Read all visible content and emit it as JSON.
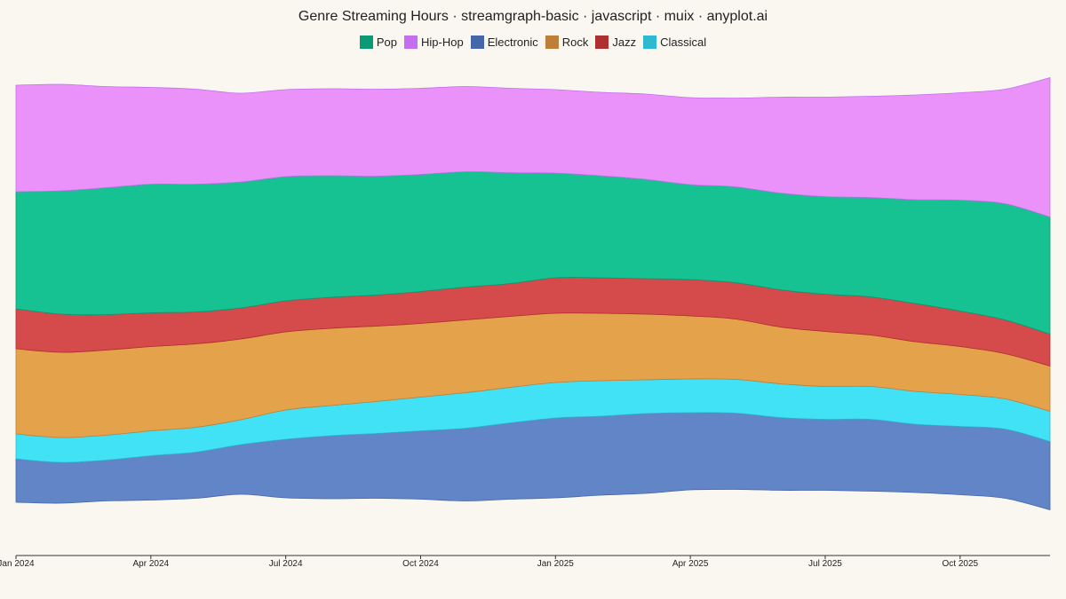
{
  "title": "Genre Streaming Hours · streamgraph-basic · javascript · muix · anyplot.ai",
  "colors": {
    "background": "#F9F7F0",
    "axis": "#333333"
  },
  "chart_data": {
    "type": "area",
    "stacking": "streamgraph (centered baseline)",
    "title": "Genre Streaming Hours · streamgraph-basic · javascript · muix · anyplot.ai",
    "xlabel": "",
    "ylabel": "",
    "x_ticks": [
      "Jan 2024",
      "Apr 2024",
      "Jul 2024",
      "Oct 2024",
      "Jan 2025",
      "Apr 2025",
      "Jul 2025",
      "Oct 2025"
    ],
    "x": [
      "Jan 2024",
      "Feb 2024",
      "Mar 2024",
      "Apr 2024",
      "May 2024",
      "Jun 2024",
      "Jul 2024",
      "Aug 2024",
      "Sep 2024",
      "Oct 2024",
      "Nov 2024",
      "Dec 2024",
      "Jan 2025",
      "Feb 2025",
      "Mar 2025",
      "Apr 2025",
      "May 2025",
      "Jun 2025",
      "Jul 2025",
      "Aug 2025",
      "Sep 2025",
      "Oct 2025",
      "Nov 2025",
      "Dec 2025"
    ],
    "legend_position": "top-center",
    "grid": false,
    "series": [
      {
        "name": "Electronic",
        "swatch": "#4467A9",
        "fill": "#6185C6",
        "values": [
          49,
          46,
          46,
          50,
          52,
          56,
          66,
          71,
          73,
          77,
          82,
          86,
          90,
          89,
          90,
          87,
          86,
          82,
          80,
          81,
          77,
          77,
          78,
          77
        ]
      },
      {
        "name": "Classical",
        "swatch": "#2DBAD0",
        "fill": "#42E2F6",
        "values": [
          28,
          28,
          28,
          28,
          28,
          28,
          33,
          34,
          36,
          38,
          40,
          40,
          40,
          40,
          38,
          38,
          38,
          38,
          37,
          37,
          37,
          36,
          34,
          34
        ]
      },
      {
        "name": "Rock",
        "swatch": "#BE7F3A",
        "fill": "#E4A24A",
        "values": [
          96,
          96,
          96,
          95,
          94,
          91,
          88,
          87,
          85,
          83,
          82,
          80,
          78,
          76,
          74,
          71,
          68,
          64,
          62,
          58,
          56,
          54,
          51,
          51
        ]
      },
      {
        "name": "Jazz",
        "swatch": "#AF2E2F",
        "fill": "#D54A4A",
        "values": [
          45,
          43,
          40,
          38,
          36,
          35,
          35,
          35,
          35,
          36,
          37,
          37,
          40,
          40,
          40,
          41,
          41,
          42,
          42,
          43,
          43,
          40,
          38,
          36
        ]
      },
      {
        "name": "Pop",
        "swatch": "#0A9A74",
        "fill": "#16C291",
        "values": [
          132,
          139,
          143,
          145,
          144,
          142,
          140,
          137,
          134,
          132,
          130,
          125,
          118,
          115,
          112,
          107,
          108,
          109,
          110,
          112,
          117,
          125,
          131,
          132
        ]
      },
      {
        "name": "Hip-Hop",
        "swatch": "#C46FEE",
        "fill": "#EB92FA",
        "values": [
          120,
          120,
          114,
          109,
          107,
          100,
          98,
          98,
          98,
          97,
          96,
          95,
          94,
          94,
          96,
          98,
          100,
          108,
          112,
          114,
          118,
          121,
          129,
          157
        ]
      }
    ],
    "legend_order": [
      "Pop",
      "Hip-Hop",
      "Electronic",
      "Rock",
      "Jazz",
      "Classical"
    ]
  }
}
